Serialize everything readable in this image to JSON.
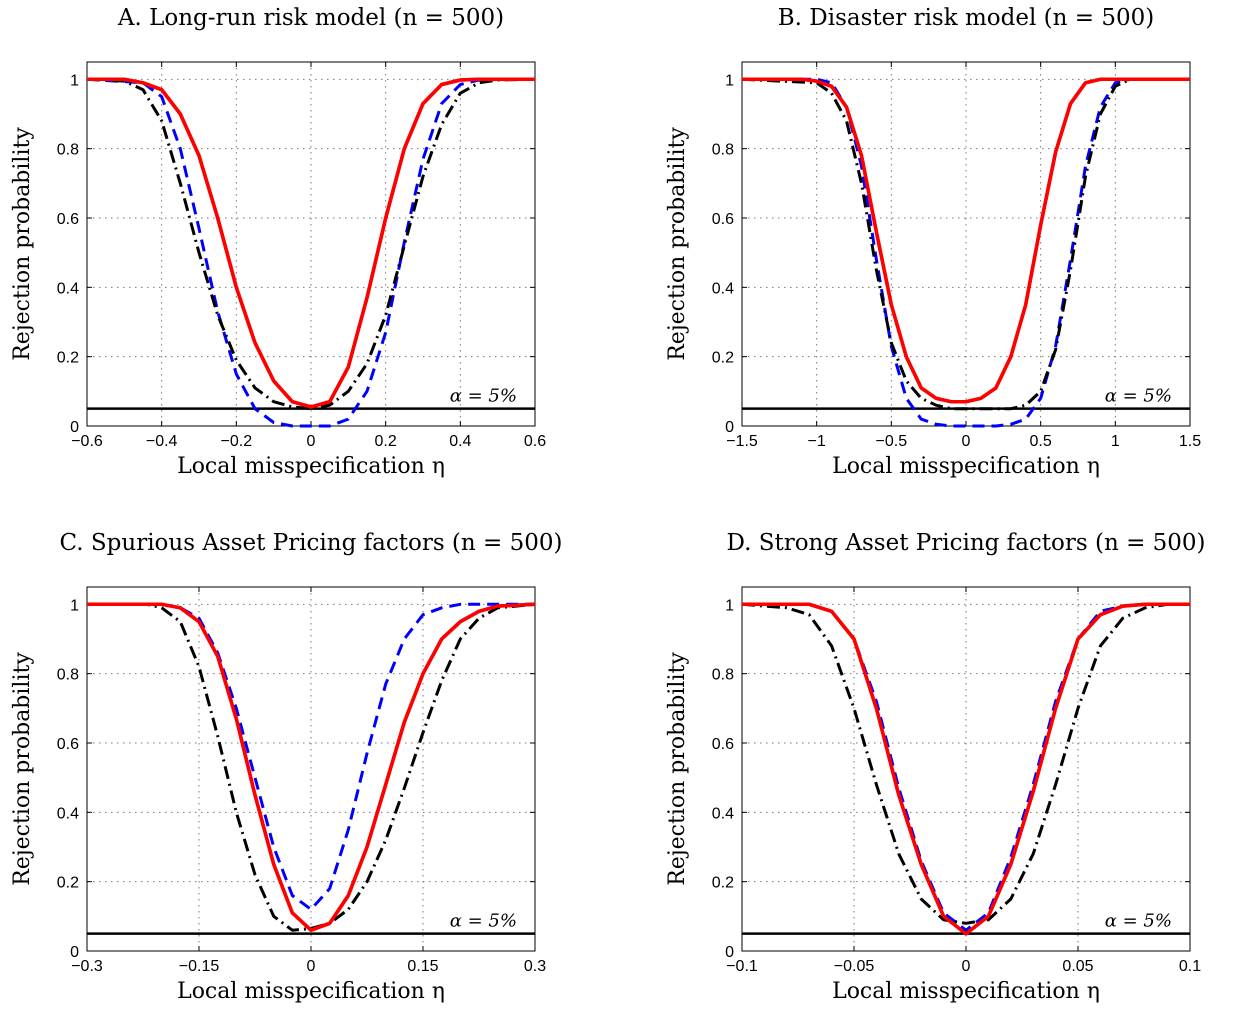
{
  "figure_title": "",
  "chart_data": [
    {
      "type": "line",
      "title": "A. Long-run risk model (n = 500)",
      "xlabel": "Local misspecification η",
      "ylabel": "Rejection probability",
      "xlim": [
        -0.6,
        0.6
      ],
      "ylim": [
        0,
        1.05
      ],
      "xticks": [
        -0.6,
        -0.4,
        -0.2,
        0,
        0.2,
        0.4,
        0.6
      ],
      "xtick_labels": [
        "−0.6",
        "−0.4",
        "−0.2",
        "0",
        "0.2",
        "0.4",
        "0.6"
      ],
      "yticks": [
        0,
        0.2,
        0.4,
        0.6,
        0.8,
        1
      ],
      "ytick_labels": [
        "0",
        "0.2",
        "0.4",
        "0.6",
        "0.8",
        "1"
      ],
      "grid": true,
      "reference_line": {
        "y": 0.05,
        "label": "α = 5%"
      },
      "series": [
        {
          "color": "#ff0000",
          "style": "solid",
          "width": 3.5,
          "x": [
            -0.6,
            -0.5,
            -0.45,
            -0.4,
            -0.35,
            -0.3,
            -0.25,
            -0.2,
            -0.15,
            -0.1,
            -0.05,
            0,
            0.05,
            0.1,
            0.15,
            0.2,
            0.25,
            0.3,
            0.35,
            0.4,
            0.45,
            0.5,
            0.6
          ],
          "y": [
            1,
            1,
            0.99,
            0.97,
            0.9,
            0.78,
            0.6,
            0.4,
            0.24,
            0.13,
            0.07,
            0.055,
            0.07,
            0.17,
            0.37,
            0.6,
            0.8,
            0.93,
            0.985,
            0.998,
            1,
            1,
            1
          ]
        },
        {
          "color": "#0000ff",
          "style": "dashed",
          "width": 3,
          "x": [
            -0.6,
            -0.45,
            -0.4,
            -0.35,
            -0.3,
            -0.25,
            -0.2,
            -0.15,
            -0.1,
            -0.05,
            0,
            0.05,
            0.1,
            0.15,
            0.2,
            0.25,
            0.3,
            0.35,
            0.4,
            0.45,
            0.5,
            0.6
          ],
          "y": [
            1,
            0.99,
            0.95,
            0.8,
            0.57,
            0.33,
            0.15,
            0.05,
            0.01,
            0.0,
            0.0,
            0.0,
            0.02,
            0.1,
            0.27,
            0.53,
            0.77,
            0.93,
            0.985,
            0.998,
            1,
            1
          ]
        },
        {
          "color": "#000000",
          "style": "dashdot",
          "width": 3,
          "x": [
            -0.6,
            -0.5,
            -0.45,
            -0.4,
            -0.35,
            -0.3,
            -0.25,
            -0.2,
            -0.15,
            -0.1,
            -0.05,
            0,
            0.05,
            0.1,
            0.15,
            0.2,
            0.25,
            0.3,
            0.35,
            0.4,
            0.45,
            0.5,
            0.6
          ],
          "y": [
            1,
            0.995,
            0.97,
            0.88,
            0.7,
            0.5,
            0.32,
            0.19,
            0.11,
            0.07,
            0.055,
            0.05,
            0.06,
            0.1,
            0.18,
            0.32,
            0.52,
            0.72,
            0.87,
            0.96,
            0.99,
            0.998,
            1
          ]
        }
      ]
    },
    {
      "type": "line",
      "title": "B. Disaster risk model (n = 500)",
      "xlabel": "Local misspecification η",
      "ylabel": "Rejection probability",
      "xlim": [
        -1.5,
        1.5
      ],
      "ylim": [
        0,
        1.05
      ],
      "xticks": [
        -1.5,
        -1,
        -0.5,
        0,
        0.5,
        1,
        1.5
      ],
      "xtick_labels": [
        "−1.5",
        "−1",
        "−0.5",
        "0",
        "0.5",
        "1",
        "1.5"
      ],
      "yticks": [
        0,
        0.2,
        0.4,
        0.6,
        0.8,
        1
      ],
      "ytick_labels": [
        "0",
        "0.2",
        "0.4",
        "0.6",
        "0.8",
        "1"
      ],
      "grid": true,
      "reference_line": {
        "y": 0.05,
        "label": "α = 5%"
      },
      "series": [
        {
          "color": "#ff0000",
          "style": "solid",
          "width": 3.5,
          "x": [
            -1.5,
            -1.1,
            -1.0,
            -0.9,
            -0.8,
            -0.7,
            -0.6,
            -0.5,
            -0.4,
            -0.3,
            -0.2,
            -0.1,
            0,
            0.1,
            0.2,
            0.3,
            0.4,
            0.5,
            0.6,
            0.7,
            0.8,
            0.9,
            1.0,
            1.5
          ],
          "y": [
            1,
            1,
            0.995,
            0.98,
            0.92,
            0.78,
            0.56,
            0.35,
            0.2,
            0.11,
            0.08,
            0.07,
            0.07,
            0.08,
            0.11,
            0.2,
            0.35,
            0.58,
            0.79,
            0.93,
            0.99,
            1,
            1,
            1
          ]
        },
        {
          "color": "#0000ff",
          "style": "dashed",
          "width": 3,
          "x": [
            -1.5,
            -1.0,
            -0.9,
            -0.8,
            -0.7,
            -0.6,
            -0.5,
            -0.4,
            -0.3,
            -0.2,
            -0.1,
            0,
            0.1,
            0.2,
            0.3,
            0.4,
            0.5,
            0.6,
            0.7,
            0.8,
            0.9,
            1.0,
            1.1,
            1.5
          ],
          "y": [
            1,
            1,
            0.99,
            0.92,
            0.75,
            0.48,
            0.23,
            0.08,
            0.02,
            0.005,
            0,
            0,
            0,
            0,
            0.005,
            0.02,
            0.08,
            0.23,
            0.48,
            0.75,
            0.92,
            0.99,
            1,
            1
          ]
        },
        {
          "color": "#000000",
          "style": "dashdot",
          "width": 3,
          "x": [
            -1.5,
            -1.0,
            -0.9,
            -0.8,
            -0.7,
            -0.6,
            -0.5,
            -0.4,
            -0.3,
            -0.2,
            -0.1,
            0,
            0.1,
            0.2,
            0.3,
            0.4,
            0.5,
            0.6,
            0.7,
            0.8,
            0.9,
            1.0,
            1.1,
            1.5
          ],
          "y": [
            1,
            0.99,
            0.96,
            0.88,
            0.7,
            0.45,
            0.24,
            0.13,
            0.08,
            0.06,
            0.05,
            0.05,
            0.05,
            0.05,
            0.05,
            0.06,
            0.1,
            0.22,
            0.45,
            0.72,
            0.9,
            0.98,
            1,
            1
          ]
        }
      ]
    },
    {
      "type": "line",
      "title": "C. Spurious Asset Pricing factors (n = 500)",
      "xlabel": "Local misspecification η",
      "ylabel": "Rejection probability",
      "xlim": [
        -0.3,
        0.3
      ],
      "ylim": [
        0,
        1.05
      ],
      "xticks": [
        -0.3,
        -0.15,
        0,
        0.15,
        0.3
      ],
      "xtick_labels": [
        "−0.3",
        "−0.15",
        "0",
        "0.15",
        "0.3"
      ],
      "yticks": [
        0,
        0.2,
        0.4,
        0.6,
        0.8,
        1
      ],
      "ytick_labels": [
        "0",
        "0.2",
        "0.4",
        "0.6",
        "0.8",
        "1"
      ],
      "grid": true,
      "reference_line": {
        "y": 0.05,
        "label": "α = 5%"
      },
      "series": [
        {
          "color": "#ff0000",
          "style": "solid",
          "width": 3.5,
          "x": [
            -0.3,
            -0.2,
            -0.175,
            -0.15,
            -0.125,
            -0.1,
            -0.075,
            -0.05,
            -0.025,
            0,
            0.025,
            0.05,
            0.075,
            0.1,
            0.125,
            0.15,
            0.175,
            0.2,
            0.225,
            0.25,
            0.3
          ],
          "y": [
            1,
            1,
            0.99,
            0.95,
            0.85,
            0.67,
            0.45,
            0.25,
            0.11,
            0.06,
            0.08,
            0.16,
            0.3,
            0.48,
            0.66,
            0.8,
            0.9,
            0.95,
            0.98,
            0.995,
            1
          ]
        },
        {
          "color": "#0000ff",
          "style": "dashed",
          "width": 3,
          "x": [
            -0.3,
            -0.2,
            -0.175,
            -0.15,
            -0.125,
            -0.1,
            -0.075,
            -0.05,
            -0.025,
            0,
            0.025,
            0.05,
            0.075,
            0.1,
            0.125,
            0.15,
            0.175,
            0.2,
            0.25,
            0.3
          ],
          "y": [
            1,
            1,
            0.99,
            0.96,
            0.86,
            0.7,
            0.5,
            0.3,
            0.16,
            0.12,
            0.18,
            0.35,
            0.57,
            0.77,
            0.9,
            0.97,
            0.99,
            1,
            1,
            1
          ]
        },
        {
          "color": "#000000",
          "style": "dashdot",
          "width": 3,
          "x": [
            -0.3,
            -0.22,
            -0.2,
            -0.175,
            -0.15,
            -0.125,
            -0.1,
            -0.075,
            -0.05,
            -0.025,
            0,
            0.025,
            0.05,
            0.075,
            0.1,
            0.125,
            0.15,
            0.175,
            0.2,
            0.225,
            0.25,
            0.3
          ],
          "y": [
            1,
            1,
            0.99,
            0.95,
            0.82,
            0.62,
            0.4,
            0.22,
            0.1,
            0.06,
            0.065,
            0.08,
            0.12,
            0.2,
            0.32,
            0.47,
            0.63,
            0.78,
            0.9,
            0.96,
            0.99,
            1
          ]
        }
      ]
    },
    {
      "type": "line",
      "title": "D. Strong Asset Pricing factors (n = 500)",
      "xlabel": "Local misspecification η",
      "ylabel": "Rejection probability",
      "xlim": [
        -0.1,
        0.1
      ],
      "ylim": [
        0,
        1.05
      ],
      "xticks": [
        -0.1,
        -0.05,
        0,
        0.05,
        0.1
      ],
      "xtick_labels": [
        "−0.1",
        "−0.05",
        "0",
        "0.05",
        "0.1"
      ],
      "yticks": [
        0,
        0.2,
        0.4,
        0.6,
        0.8,
        1
      ],
      "ytick_labels": [
        "0",
        "0.2",
        "0.4",
        "0.6",
        "0.8",
        "1"
      ],
      "grid": true,
      "reference_line": {
        "y": 0.05,
        "label": "α = 5%"
      },
      "series": [
        {
          "color": "#ff0000",
          "style": "solid",
          "width": 3.5,
          "x": [
            -0.1,
            -0.07,
            -0.06,
            -0.05,
            -0.04,
            -0.03,
            -0.02,
            -0.01,
            0,
            0.01,
            0.02,
            0.03,
            0.04,
            0.05,
            0.06,
            0.07,
            0.08,
            0.1
          ],
          "y": [
            1,
            1,
            0.98,
            0.9,
            0.7,
            0.45,
            0.25,
            0.1,
            0.05,
            0.1,
            0.25,
            0.46,
            0.7,
            0.9,
            0.97,
            0.995,
            1,
            1
          ]
        },
        {
          "color": "#0000ff",
          "style": "dashed",
          "width": 3,
          "x": [
            -0.1,
            -0.07,
            -0.06,
            -0.05,
            -0.04,
            -0.03,
            -0.02,
            -0.01,
            0,
            0.01,
            0.02,
            0.03,
            0.04,
            0.05,
            0.06,
            0.07,
            0.08,
            0.1
          ],
          "y": [
            1,
            1,
            0.98,
            0.9,
            0.72,
            0.47,
            0.26,
            0.11,
            0.06,
            0.11,
            0.27,
            0.48,
            0.72,
            0.9,
            0.98,
            0.995,
            1,
            1
          ]
        },
        {
          "color": "#000000",
          "style": "dashdot",
          "width": 3,
          "x": [
            -0.1,
            -0.08,
            -0.07,
            -0.06,
            -0.05,
            -0.04,
            -0.03,
            -0.02,
            -0.01,
            0,
            0.01,
            0.02,
            0.03,
            0.04,
            0.05,
            0.06,
            0.07,
            0.08,
            0.09,
            0.1
          ],
          "y": [
            1,
            0.99,
            0.97,
            0.88,
            0.7,
            0.48,
            0.28,
            0.15,
            0.09,
            0.08,
            0.09,
            0.15,
            0.28,
            0.48,
            0.7,
            0.88,
            0.96,
            0.99,
            1,
            1
          ]
        }
      ]
    }
  ]
}
